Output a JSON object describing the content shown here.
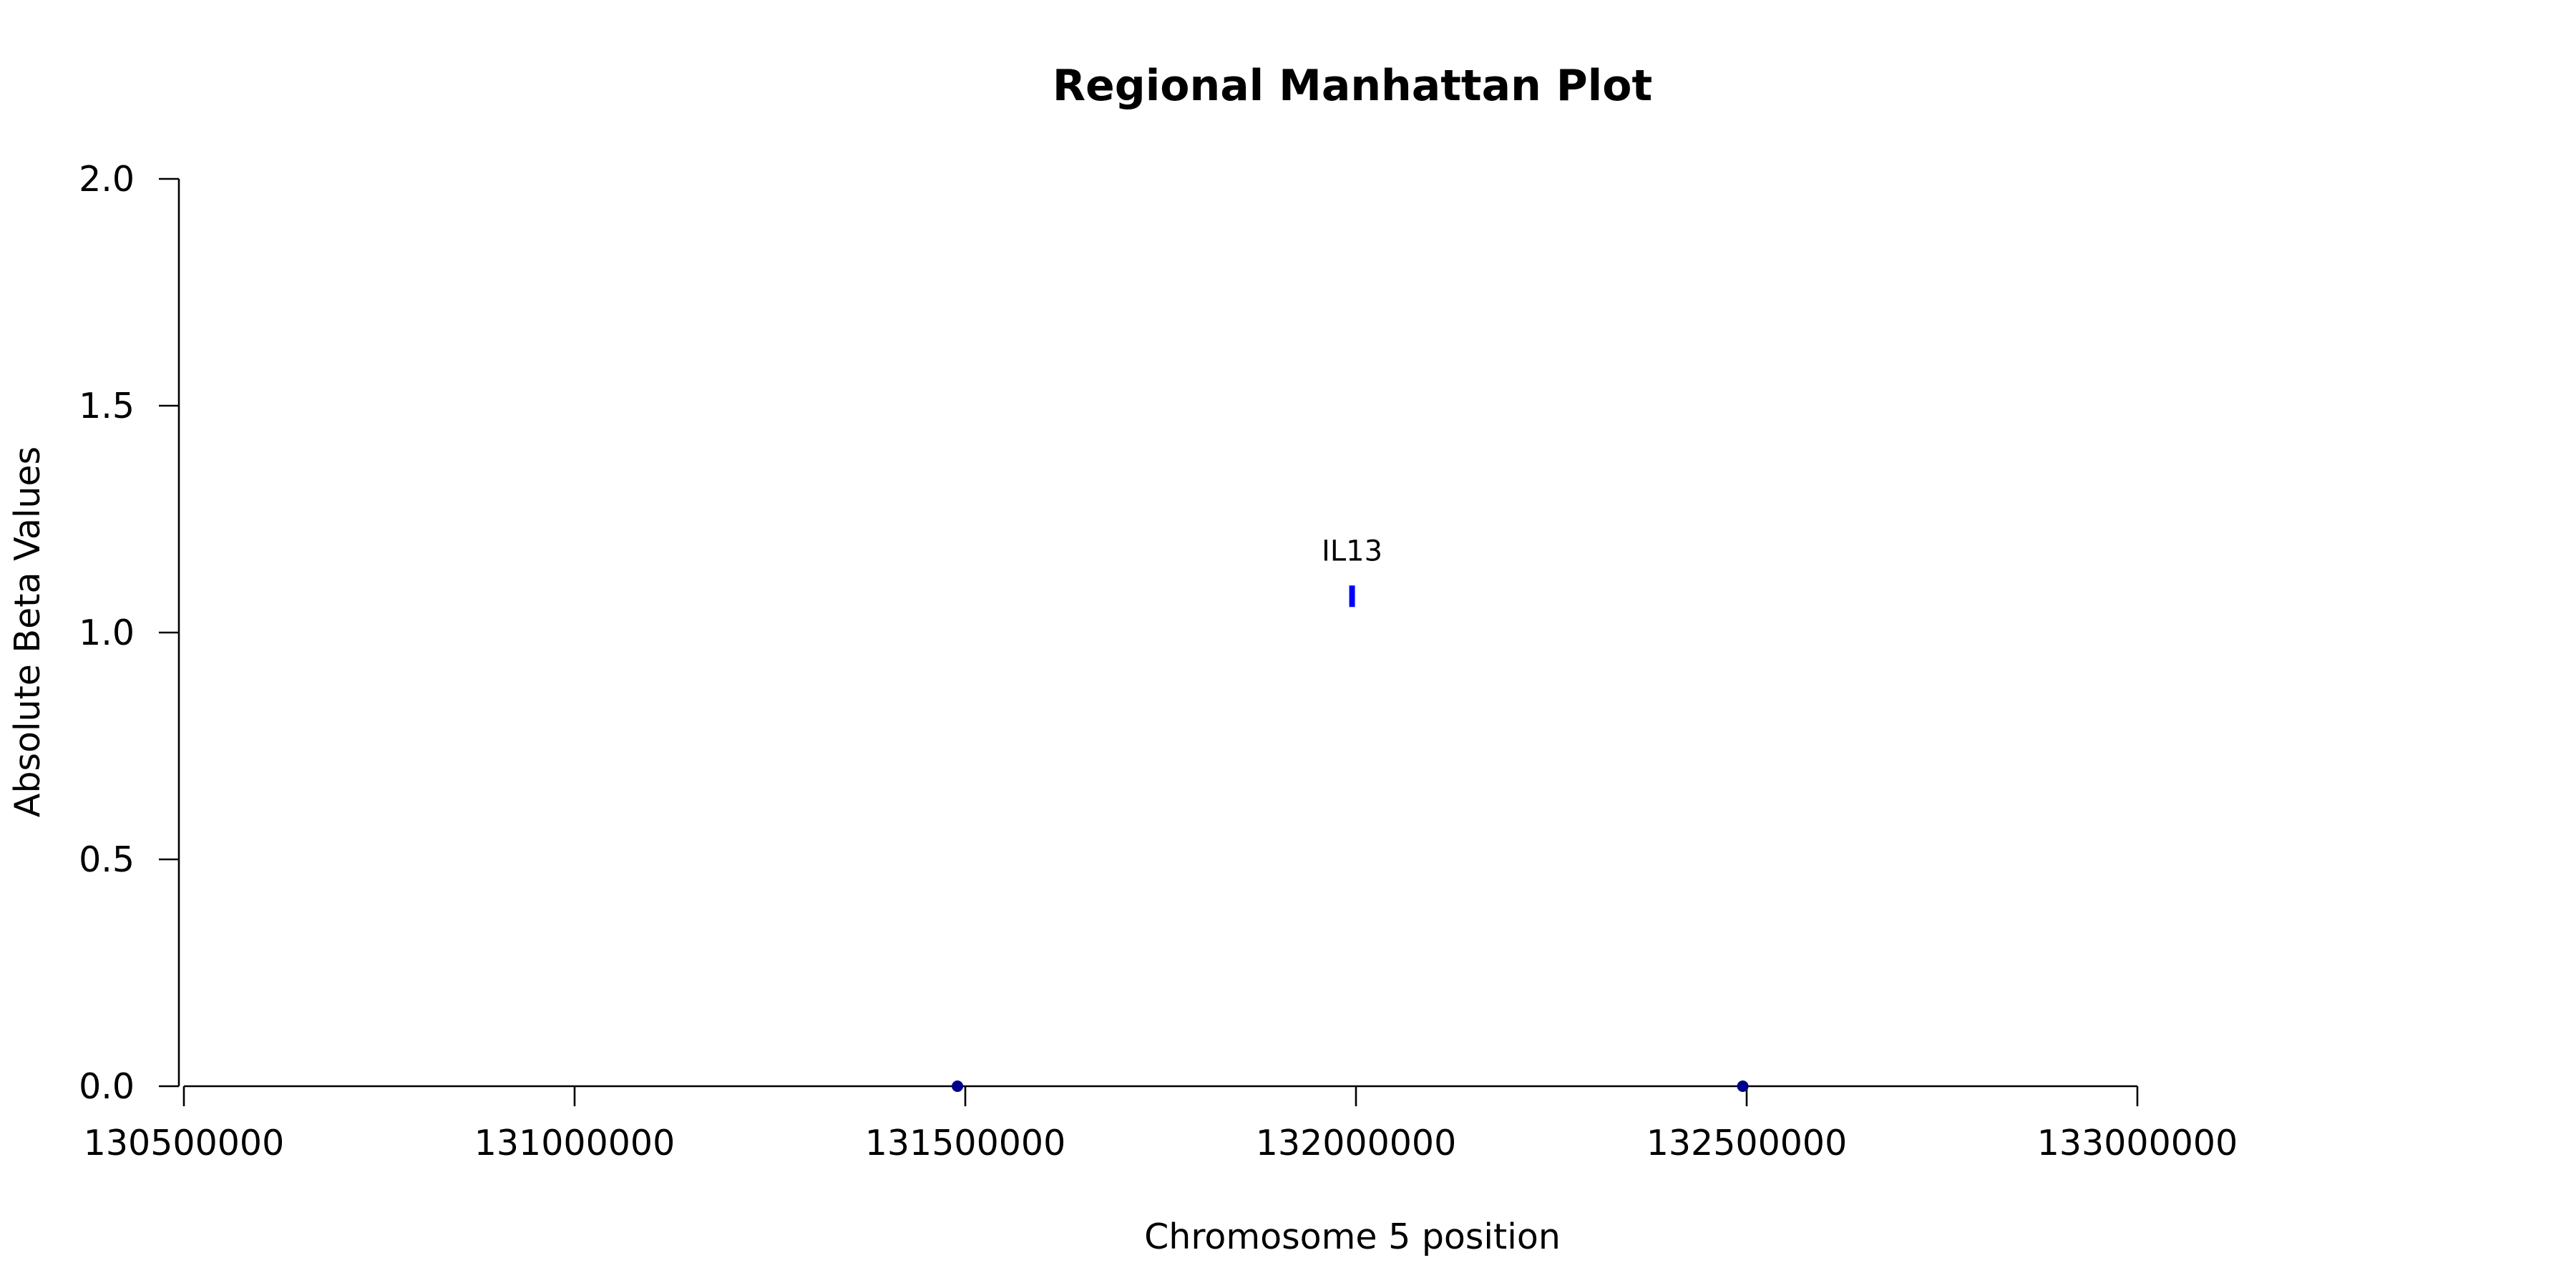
{
  "chart_data": {
    "type": "scatter",
    "title": "Regional Manhattan Plot",
    "xlabel": "Chromosome 5 position",
    "ylabel": "Absolute Beta Values",
    "xlim": [
      130490000,
      133000000
    ],
    "ylim": [
      0,
      2
    ],
    "x_ticks": [
      130500000,
      131000000,
      131500000,
      132000000,
      132500000,
      133000000
    ],
    "x_tick_labels": [
      "130500000",
      "131000000",
      "131500000",
      "132000000",
      "132500000",
      "133000000"
    ],
    "y_ticks": [
      0,
      0.5,
      1,
      1.5,
      2
    ],
    "y_tick_labels": [
      "0.0",
      "0.5",
      "1.0",
      "1.5",
      "2.0"
    ],
    "grid": false,
    "points": [
      {
        "x": 131490000,
        "y": 0.0,
        "color": "#00008b",
        "marker": "dot"
      },
      {
        "x": 131995000,
        "y": 1.08,
        "color": "#0000ff",
        "marker": "bar"
      },
      {
        "x": 132495000,
        "y": 0.0,
        "color": "#00008b",
        "marker": "dot"
      }
    ],
    "annotations": [
      {
        "text": "IL13",
        "x": 131995000,
        "y": 1.08
      }
    ]
  }
}
